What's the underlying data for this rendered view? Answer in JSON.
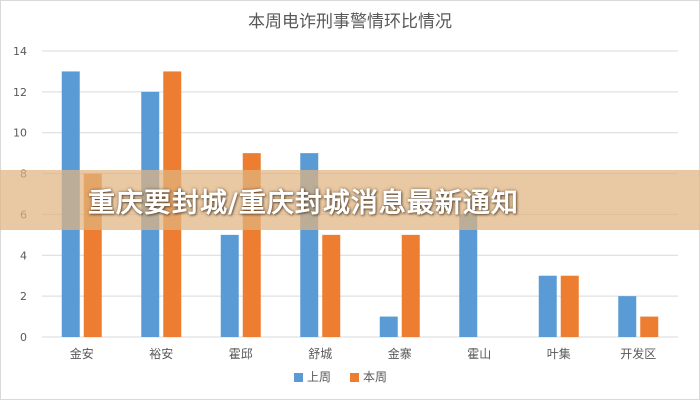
{
  "chart_data": {
    "type": "bar",
    "title": "本周电诈刑事警情环比情况",
    "xlabel": "",
    "ylabel": "",
    "categories": [
      "金安",
      "裕安",
      "霍邱",
      "舒城",
      "金寨",
      "霍山",
      "叶集",
      "开发区"
    ],
    "series": [
      {
        "name": "上周",
        "values": [
          13,
          12,
          5,
          9,
          1,
          6,
          3,
          2
        ],
        "color": "#5B9BD5"
      },
      {
        "name": "本周",
        "values": [
          8,
          13,
          9,
          5,
          5,
          0,
          3,
          1
        ],
        "color": "#ED7D31"
      }
    ],
    "ylim": [
      0,
      14
    ],
    "yticks": [
      0,
      2,
      4,
      6,
      8,
      10,
      12,
      14
    ],
    "grid": true,
    "legend": "bottom"
  },
  "overlay": {
    "banner_text": "重庆要封城/重庆封城消息最新通知",
    "banner_color": "#E0B480"
  },
  "colors": {
    "grid": "#d9d9d9",
    "axis_text": "#595959",
    "title_text": "#595959"
  }
}
